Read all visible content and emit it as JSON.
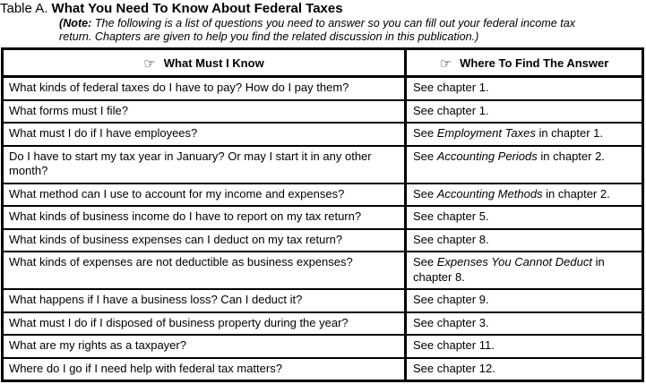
{
  "document": {
    "table_label": "Table A.",
    "title": "What You Need To Know About Federal Taxes",
    "note_prefix": "(Note:",
    "note_body": " The following is a list of questions you need to answer so you can fill out your federal income tax return. Chapters are given to help you find the related discussion in this publication.)"
  },
  "table": {
    "pointer_icon": "☞",
    "headers": [
      "What Must I Know",
      "Where To Find The Answer"
    ],
    "rows": [
      {
        "question": "What kinds of federal taxes do I have to pay?  How do I pay them?",
        "answer": [
          {
            "text": "See chapter 1.",
            "italic": false
          }
        ]
      },
      {
        "question": "What forms must I file?",
        "answer": [
          {
            "text": "See chapter 1.",
            "italic": false
          }
        ]
      },
      {
        "question": "What must I do if I have employees?",
        "answer": [
          {
            "text": "See ",
            "italic": false
          },
          {
            "text": "Employment Taxes",
            "italic": true
          },
          {
            "text": " in chapter 1.",
            "italic": false
          }
        ]
      },
      {
        "question": "Do I have to start my tax year in January? Or may I start it in any other month?",
        "answer": [
          {
            "text": "See ",
            "italic": false
          },
          {
            "text": "Accounting Periods",
            "italic": true
          },
          {
            "text": " in chapter 2.",
            "italic": false
          }
        ]
      },
      {
        "question": "What method can I use to account for my income and expenses?",
        "answer": [
          {
            "text": "See ",
            "italic": false
          },
          {
            "text": "Accounting Methods",
            "italic": true
          },
          {
            "text": " in chapter 2.",
            "italic": false
          }
        ]
      },
      {
        "question": "What kinds of business income do I have to report on my tax return?",
        "answer": [
          {
            "text": "See chapter 5.",
            "italic": false
          }
        ]
      },
      {
        "question": "What kinds of business expenses can I deduct on my tax return?",
        "answer": [
          {
            "text": "See chapter 8.",
            "italic": false
          }
        ]
      },
      {
        "question": "What kinds of expenses are not deductible as business expenses?",
        "answer": [
          {
            "text": "See ",
            "italic": false
          },
          {
            "text": "Expenses You Cannot Deduct",
            "italic": true
          },
          {
            "text": " in chapter 8.",
            "italic": false
          }
        ]
      },
      {
        "question": "What happens if I have a business loss? Can I deduct it?",
        "answer": [
          {
            "text": "See chapter 9.",
            "italic": false
          }
        ]
      },
      {
        "question": "What must I do if I disposed of business property during the year?",
        "answer": [
          {
            "text": "See chapter 3.",
            "italic": false
          }
        ]
      },
      {
        "question": "What are my rights as a taxpayer?",
        "answer": [
          {
            "text": "See chapter 11.",
            "italic": false
          }
        ]
      },
      {
        "question": "Where do I go if I need help with federal tax matters?",
        "answer": [
          {
            "text": "See chapter 12.",
            "italic": false
          }
        ]
      }
    ]
  },
  "colors": {
    "text": "#000000",
    "border": "#000000",
    "background": "#ffffff"
  }
}
